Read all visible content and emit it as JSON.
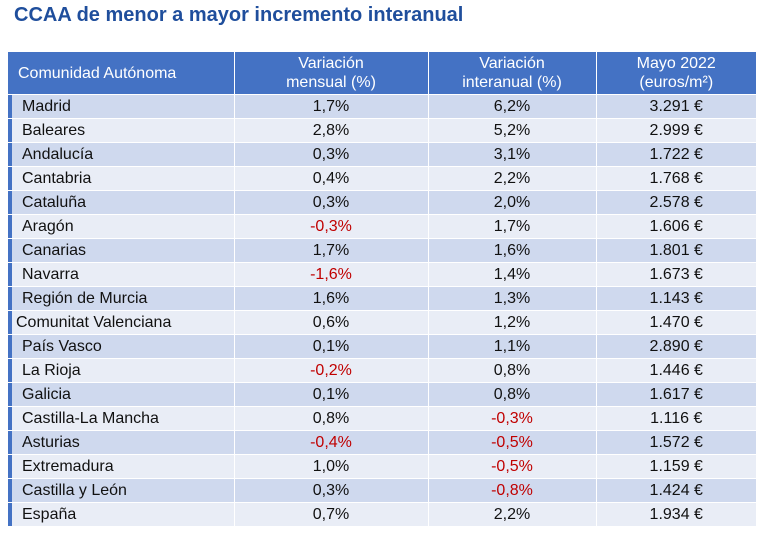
{
  "title": "CCAA de menor a mayor incremento interanual",
  "colors": {
    "header": "#4472c4",
    "row_dark": "#cfd9ee",
    "row_light": "#e9edf6",
    "title": "#1f4e9c",
    "negative": "#c00000"
  },
  "table": {
    "headers": {
      "region": "Comunidad Autónoma",
      "monthly_1": "Variación",
      "monthly_2": "mensual (%)",
      "annual_1": "Variación",
      "annual_2": "interanual (%)",
      "price_1": "Mayo 2022",
      "price_2": "(euros/m²)"
    },
    "rows": [
      {
        "region": "Madrid",
        "monthly": "1,7%",
        "annual": "6,2%",
        "price": "3.291 €"
      },
      {
        "region": "Baleares",
        "monthly": "2,8%",
        "annual": "5,2%",
        "price": "2.999 €"
      },
      {
        "region": "Andalucía",
        "monthly": "0,3%",
        "annual": "3,1%",
        "price": "1.722 €"
      },
      {
        "region": "Cantabria",
        "monthly": "0,4%",
        "annual": "2,2%",
        "price": "1.768 €"
      },
      {
        "region": "Cataluña",
        "monthly": "0,3%",
        "annual": "2,0%",
        "price": "2.578 €"
      },
      {
        "region": "Aragón",
        "monthly": "-0,3%",
        "annual": "1,7%",
        "price": "1.606 €"
      },
      {
        "region": "Canarias",
        "monthly": "1,7%",
        "annual": "1,6%",
        "price": "1.801 €"
      },
      {
        "region": "Navarra",
        "monthly": "-1,6%",
        "annual": "1,4%",
        "price": "1.673 €"
      },
      {
        "region": "Región de Murcia",
        "monthly": "1,6%",
        "annual": "1,3%",
        "price": "1.143 €"
      },
      {
        "region": "Comunitat Valenciana",
        "monthly": "0,6%",
        "annual": "1,2%",
        "price": "1.470 €"
      },
      {
        "region": "País Vasco",
        "monthly": "0,1%",
        "annual": "1,1%",
        "price": "2.890 €"
      },
      {
        "region": "La Rioja",
        "monthly": "-0,2%",
        "annual": "0,8%",
        "price": "1.446 €"
      },
      {
        "region": "Galicia",
        "monthly": "0,1%",
        "annual": "0,8%",
        "price": "1.617 €"
      },
      {
        "region": "Castilla-La Mancha",
        "monthly": "0,8%",
        "annual": "-0,3%",
        "price": "1.116 €"
      },
      {
        "region": "Asturias",
        "monthly": "-0,4%",
        "annual": "-0,5%",
        "price": "1.572 €"
      },
      {
        "region": "Extremadura",
        "monthly": "1,0%",
        "annual": "-0,5%",
        "price": "1.159 €"
      },
      {
        "region": "Castilla y León",
        "monthly": "0,3%",
        "annual": "-0,8%",
        "price": "1.424 €"
      },
      {
        "region": "España",
        "monthly": "0,7%",
        "annual": "2,2%",
        "price": "1.934 €"
      }
    ]
  }
}
